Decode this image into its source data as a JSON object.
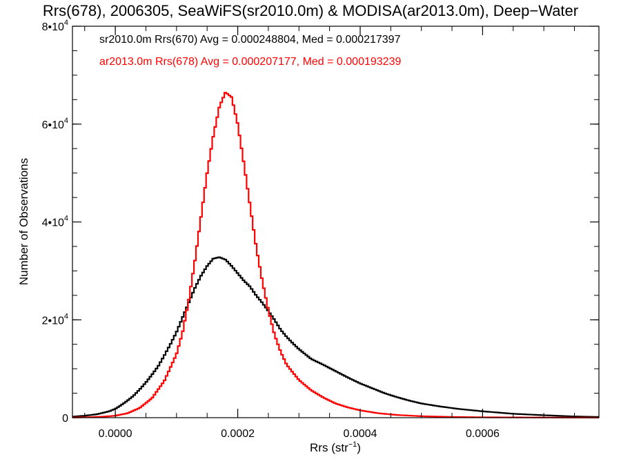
{
  "chart_data": {
    "type": "line",
    "title": "Rrs(678), 2006305, SeaWiFS(sr2010.0m) & MODISA(ar2013.0m), Deep−Water",
    "xlabel_main": "Rrs (str",
    "xlabel_sup": "−1",
    "xlabel_end": ")",
    "ylabel": "Number of Observations",
    "xlim": [
      -7e-05,
      0.00079
    ],
    "ylim": [
      0,
      80000
    ],
    "x_ticks": [
      {
        "value": 0.0,
        "label": "0.0000"
      },
      {
        "value": 0.0002,
        "label": "0.0002"
      },
      {
        "value": 0.0004,
        "label": "0.0004"
      },
      {
        "value": 0.0006,
        "label": "0.0006"
      }
    ],
    "y_ticks": [
      {
        "value": 0,
        "base": "0",
        "exp": ""
      },
      {
        "value": 20000,
        "base": "2•10",
        "exp": "4"
      },
      {
        "value": 40000,
        "base": "4•10",
        "exp": "4"
      },
      {
        "value": 60000,
        "base": "6•10",
        "exp": "4"
      },
      {
        "value": 80000,
        "base": "8•10",
        "exp": "4"
      }
    ],
    "x_minor_step": 5e-05,
    "y_minor_step": 5000,
    "grid": false,
    "series": [
      {
        "name": "sr2010.0m Rrs(670) Avg = 0.000248804, Med = 0.000217397",
        "color": "#000000",
        "points": [
          [
            -7e-05,
            200
          ],
          [
            -5e-05,
            400
          ],
          [
            -3e-05,
            700
          ],
          [
            -2e-05,
            1000
          ],
          [
            -1e-05,
            1300
          ],
          [
            0.0,
            1800
          ],
          [
            1e-05,
            2600
          ],
          [
            2e-05,
            3500
          ],
          [
            3e-05,
            4500
          ],
          [
            4e-05,
            5800
          ],
          [
            5e-05,
            7200
          ],
          [
            6e-05,
            8800
          ],
          [
            7e-05,
            10500
          ],
          [
            8e-05,
            12700
          ],
          [
            9e-05,
            15000
          ],
          [
            0.0001,
            17500
          ],
          [
            0.00011,
            20500
          ],
          [
            0.00012,
            23500
          ],
          [
            0.00013,
            26500
          ],
          [
            0.00014,
            29000
          ],
          [
            0.00015,
            31000
          ],
          [
            0.00016,
            32500
          ],
          [
            0.00017,
            32800
          ],
          [
            0.00018,
            32300
          ],
          [
            0.00019,
            31000
          ],
          [
            0.0002,
            29500
          ],
          [
            0.00021,
            28000
          ],
          [
            0.00022,
            26800
          ],
          [
            0.00023,
            25000
          ],
          [
            0.00024,
            23500
          ],
          [
            0.00025,
            21800
          ],
          [
            0.00026,
            20000
          ],
          [
            0.00027,
            18000
          ],
          [
            0.00028,
            16500
          ],
          [
            0.00029,
            15200
          ],
          [
            0.0003,
            14000
          ],
          [
            0.00032,
            12000
          ],
          [
            0.00034,
            10800
          ],
          [
            0.00036,
            9500
          ],
          [
            0.00038,
            8200
          ],
          [
            0.0004,
            7000
          ],
          [
            0.00042,
            6000
          ],
          [
            0.00044,
            5000
          ],
          [
            0.00046,
            4200
          ],
          [
            0.00048,
            3500
          ],
          [
            0.0005,
            2900
          ],
          [
            0.00053,
            2300
          ],
          [
            0.00056,
            1800
          ],
          [
            0.0006,
            1300
          ],
          [
            0.00065,
            800
          ],
          [
            0.0007,
            500
          ],
          [
            0.00075,
            250
          ],
          [
            0.00079,
            150
          ]
        ]
      },
      {
        "name": "ar2013.0m Rrs(678) Avg = 0.000207177, Med = 0.000193239",
        "color": "#ff0000",
        "points": [
          [
            -7e-05,
            50
          ],
          [
            -4e-05,
            100
          ],
          [
            -2e-05,
            200
          ],
          [
            0.0,
            400
          ],
          [
            2e-05,
            900
          ],
          [
            4e-05,
            2000
          ],
          [
            6e-05,
            4000
          ],
          [
            8e-05,
            7500
          ],
          [
            0.0001,
            13000
          ],
          [
            0.00011,
            17500
          ],
          [
            0.00012,
            24000
          ],
          [
            0.00013,
            32000
          ],
          [
            0.00014,
            41000
          ],
          [
            0.00015,
            50000
          ],
          [
            0.00016,
            57500
          ],
          [
            0.00017,
            63500
          ],
          [
            0.00018,
            66500
          ],
          [
            0.00019,
            65500
          ],
          [
            0.0002,
            60000
          ],
          [
            0.00021,
            52000
          ],
          [
            0.00022,
            43500
          ],
          [
            0.00023,
            35000
          ],
          [
            0.00024,
            28000
          ],
          [
            0.00025,
            22000
          ],
          [
            0.00026,
            17000
          ],
          [
            0.00027,
            13500
          ],
          [
            0.00028,
            10800
          ],
          [
            0.0003,
            7700
          ],
          [
            0.00032,
            5600
          ],
          [
            0.00034,
            4100
          ],
          [
            0.00036,
            2900
          ],
          [
            0.00038,
            2100
          ],
          [
            0.0004,
            1500
          ],
          [
            0.00043,
            900
          ],
          [
            0.00046,
            550
          ],
          [
            0.0005,
            300
          ],
          [
            0.00055,
            150
          ],
          [
            0.0006,
            80
          ],
          [
            0.0007,
            30
          ],
          [
            0.00079,
            10
          ]
        ]
      }
    ]
  }
}
